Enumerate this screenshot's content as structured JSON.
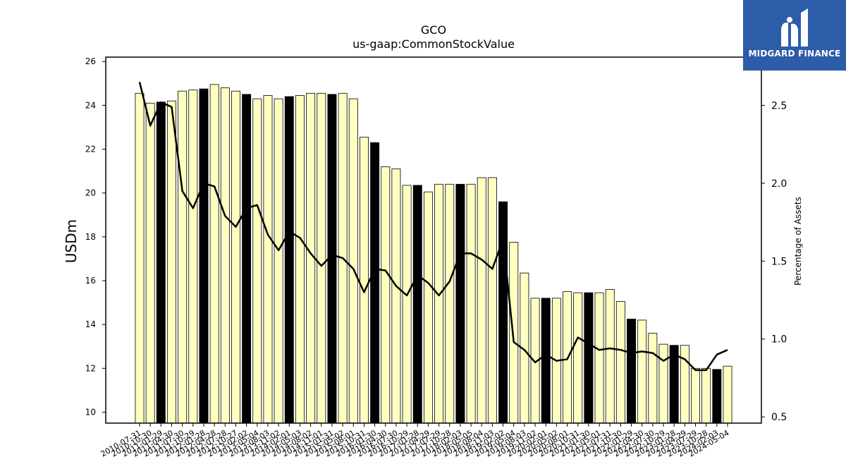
{
  "chart_data": {
    "type": "bar",
    "title": "GCO",
    "subtitle": "us-gaap:CommonStockValue",
    "ylabel": "USDm",
    "y2label": "Percentage of Assets",
    "ylim": [
      9.5,
      26.2
    ],
    "y2lim": [
      0.46,
      2.81
    ],
    "yticks": [
      10,
      12,
      14,
      16,
      18,
      20,
      22,
      24,
      26
    ],
    "y2ticks": [
      0.5,
      1.0,
      1.5,
      2.0,
      2.5
    ],
    "y2tick_labels": [
      "0.5",
      "1.0",
      "1.5",
      "2.0",
      "2.5"
    ],
    "categories": [
      "2010-07-31",
      "2010-10-30",
      "2011-01-29",
      "2011-04-30",
      "2011-07-30",
      "2011-10-29",
      "2012-01-28",
      "2012-04-28",
      "2012-07-28",
      "2012-10-27",
      "2013-02-02",
      "2013-05-04",
      "2013-08-03",
      "2013-11-02",
      "2014-02-01",
      "2014-05-03",
      "2014-08-02",
      "2014-11-01",
      "2015-01-31",
      "2015-05-02",
      "2015-08-01",
      "2015-10-31",
      "2016-01-30",
      "2016-04-30",
      "2016-07-30",
      "2016-10-29",
      "2017-01-28",
      "2017-04-29",
      "2017-07-29",
      "2017-10-28",
      "2018-02-03",
      "2018-05-05",
      "2018-08-04",
      "2018-11-03",
      "2019-02-02",
      "2019-05-04",
      "2019-08-03",
      "2019-11-02",
      "2020-02-01",
      "2020-05-02",
      "2020-08-01",
      "2020-10-31",
      "2021-01-30",
      "2021-05-01",
      "2021-07-31",
      "2021-10-30",
      "2022-01-29",
      "2022-04-30",
      "2022-07-30",
      "2022-10-29",
      "2023-01-28",
      "2023-04-29",
      "2023-07-29",
      "2023-10-28",
      "2024-02-03",
      "2024-05-04"
    ],
    "values": [
      24.55,
      24.1,
      24.15,
      24.2,
      24.65,
      24.7,
      24.75,
      24.95,
      24.8,
      24.65,
      24.5,
      24.3,
      24.45,
      24.3,
      24.4,
      24.45,
      24.55,
      24.55,
      24.5,
      24.55,
      24.3,
      22.55,
      22.3,
      21.2,
      21.1,
      20.35,
      20.35,
      20.05,
      20.4,
      20.4,
      20.4,
      20.4,
      20.7,
      20.7,
      19.6,
      17.75,
      16.35,
      15.2,
      15.2,
      15.2,
      15.5,
      15.45,
      15.45,
      15.45,
      15.6,
      15.05,
      14.25,
      14.2,
      13.6,
      13.1,
      13.05,
      13.05,
      12.0,
      12.0,
      11.95,
      12.1
    ],
    "highlight": [
      false,
      false,
      true,
      false,
      false,
      false,
      true,
      false,
      false,
      false,
      true,
      false,
      false,
      false,
      true,
      false,
      false,
      false,
      true,
      false,
      false,
      false,
      true,
      false,
      false,
      false,
      true,
      false,
      false,
      false,
      true,
      false,
      false,
      false,
      true,
      false,
      false,
      false,
      true,
      false,
      false,
      false,
      true,
      false,
      false,
      false,
      true,
      false,
      false,
      false,
      true,
      false,
      false,
      false,
      true,
      false
    ],
    "series": [
      {
        "values": [
          2.65,
          2.37,
          2.52,
          2.49,
          1.95,
          1.84,
          2.0,
          1.98,
          1.79,
          1.72,
          1.84,
          1.86,
          1.67,
          1.57,
          1.69,
          1.65,
          1.55,
          1.47,
          1.54,
          1.52,
          1.45,
          1.3,
          1.45,
          1.44,
          1.34,
          1.28,
          1.41,
          1.36,
          1.28,
          1.37,
          1.55,
          1.55,
          1.51,
          1.45,
          1.64,
          0.98,
          0.93,
          0.85,
          0.9,
          0.86,
          0.87,
          1.01,
          0.97,
          0.93,
          0.94,
          0.93,
          0.91,
          0.92,
          0.91,
          0.86,
          0.9,
          0.87,
          0.8,
          0.8,
          0.9,
          0.93
        ]
      }
    ],
    "colors": {
      "bar": "#ffffc0",
      "bar_highlight": "#000000",
      "bar_edge": "#000000",
      "line": "#000000"
    },
    "grid": false
  },
  "logo": {
    "text": "MIDGARD FINANCE",
    "color": "#2d5ca8"
  }
}
